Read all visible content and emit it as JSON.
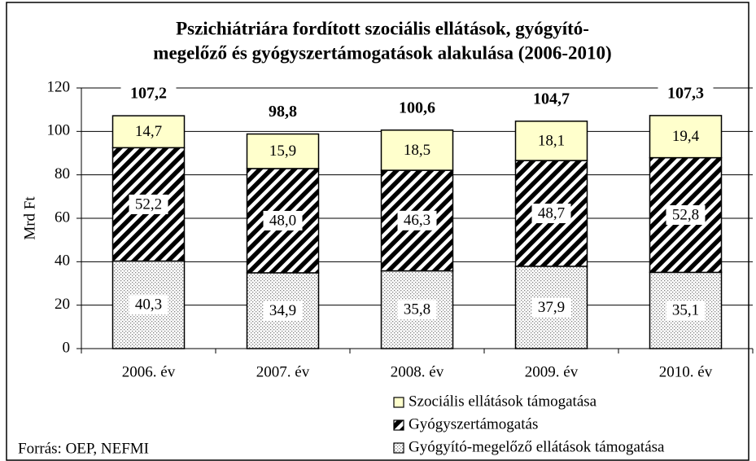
{
  "chart_data": {
    "type": "stacked_bar",
    "title": [
      "Pszichiátriára fordított szociális ellátások, gyógyító-",
      "megelőző és gyógyszertámogatások alakulása (2006-2010)"
    ],
    "y_label": "Mrd Ft",
    "source": "Forrás: OEP, NEFMI",
    "categories": [
      "2006. év",
      "2007. év",
      "2008. év",
      "2009. év",
      "2010. év"
    ],
    "series": [
      {
        "name": "Gyógyító-megelőző ellátások támogatása",
        "color": "#808080",
        "pattern": "dots",
        "values": [
          40.3,
          34.9,
          35.8,
          37.9,
          35.1
        ],
        "value_labels": [
          "40,3",
          "34,9",
          "35,8",
          "37,9",
          "35,1"
        ]
      },
      {
        "name": "Gyógyszertámogatás",
        "color": "#000000",
        "pattern": "hatch",
        "values": [
          52.2,
          48.0,
          46.3,
          48.7,
          52.8
        ],
        "value_labels": [
          "52,2",
          "48,0",
          "46,3",
          "48,7",
          "52,8"
        ]
      },
      {
        "name": "Szociális ellátások támogatása",
        "color": "#ffffcc",
        "pattern": "solid",
        "values": [
          14.7,
          15.9,
          18.5,
          18.1,
          19.4
        ],
        "value_labels": [
          "14,7",
          "15,9",
          "18,5",
          "18,1",
          "19,4"
        ]
      }
    ],
    "totals": [
      107.2,
      98.8,
      100.6,
      104.7,
      107.3
    ],
    "total_labels": [
      "107,2",
      "98,8",
      "100,6",
      "104,7",
      "107,3"
    ],
    "ylim": [
      0,
      120
    ],
    "yticks": [
      0,
      20,
      40,
      60,
      80,
      100,
      120
    ],
    "grid": true
  }
}
